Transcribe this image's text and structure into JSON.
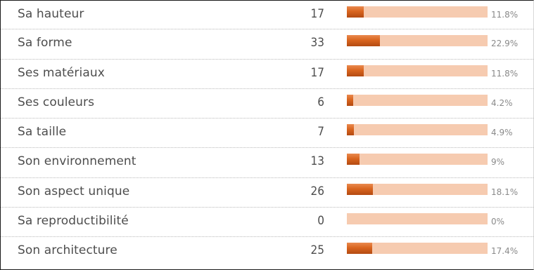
{
  "chart_data": {
    "type": "table",
    "rows": [
      {
        "label": "Sa hauteur",
        "count": "17",
        "percent": "11.8%",
        "share": 0.118
      },
      {
        "label": "Sa forme",
        "count": "33",
        "percent": "22.9%",
        "share": 0.229
      },
      {
        "label": "Ses matériaux",
        "count": "17",
        "percent": "11.8%",
        "share": 0.118
      },
      {
        "label": "Ses couleurs",
        "count": "6",
        "percent": "4.2%",
        "share": 0.042
      },
      {
        "label": "Sa taille",
        "count": "7",
        "percent": "4.9%",
        "share": 0.049
      },
      {
        "label": "Son environnement",
        "count": "13",
        "percent": "9%",
        "share": 0.09
      },
      {
        "label": "Son aspect unique",
        "count": "26",
        "percent": "18.1%",
        "share": 0.181
      },
      {
        "label": "Sa reproductibilité",
        "count": "0",
        "percent": "0%",
        "share": 0.0
      },
      {
        "label": "Son architecture",
        "count": "25",
        "percent": "17.4%",
        "share": 0.174
      }
    ],
    "colors": {
      "bar_fill": "#d9651f",
      "bar_track": "#f6cbb0",
      "text": "#4d4d4d",
      "percent_text": "#8a8a8a"
    }
  }
}
